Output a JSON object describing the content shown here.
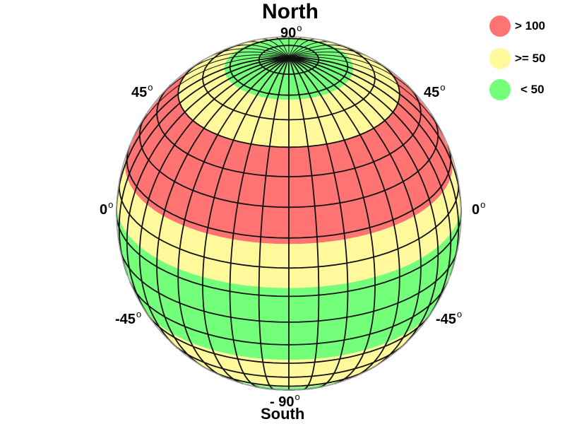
{
  "title": "North",
  "subtitle": "South",
  "latitude_labels": {
    "top": "90",
    "upper_left": "45",
    "upper_right": "45",
    "equator_left": "0",
    "equator_right": "0",
    "lower_left": "-45",
    "lower_right": "-45",
    "bottom": "- 90"
  },
  "degree_symbol": "o",
  "legend": [
    {
      "label": "> 100",
      "color": "#ff7373"
    },
    {
      "label": ">= 50",
      "color": "#fff99b"
    },
    {
      "label": "< 50",
      "color": "#73ff7a"
    }
  ],
  "bands": [
    {
      "lat_from": 90,
      "lat_to": 68,
      "color": "#73ff7a"
    },
    {
      "lat_from": 68,
      "lat_to": 50,
      "color": "#fff99b"
    },
    {
      "lat_from": 50,
      "lat_to": 18,
      "color": "#ff7373"
    },
    {
      "lat_from": 18,
      "lat_to": 3,
      "color": "#fff99b"
    },
    {
      "lat_from": 3,
      "lat_to": -28,
      "color": "#73ff7a"
    },
    {
      "lat_from": -28,
      "lat_to": -52,
      "color": "#fff99b"
    },
    {
      "lat_from": -52,
      "lat_to": -90,
      "color": "#73ff7a"
    }
  ]
}
